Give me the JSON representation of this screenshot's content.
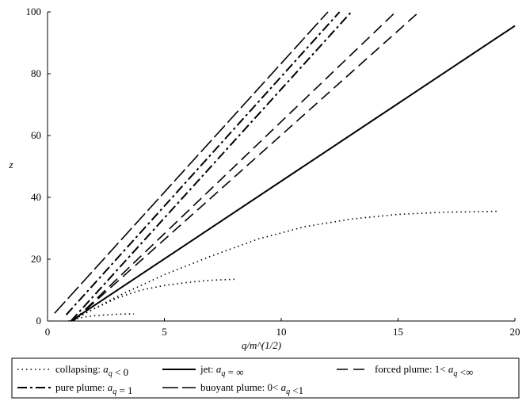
{
  "chart_data": {
    "type": "line",
    "x_label": "q/m^(1/2)",
    "y_label": "z",
    "xlim": [
      0,
      20
    ],
    "ylim": [
      0,
      100
    ],
    "xticks": [
      0,
      5,
      10,
      15,
      20
    ],
    "yticks": [
      0,
      20,
      40,
      60,
      80,
      100
    ],
    "series": [
      {
        "name": "collapsing: a_q < 0",
        "color": "#000000",
        "dash": "1.5 4",
        "width": 1.6,
        "lines": [
          {
            "x": [
              0.9,
              1.5,
              2,
              2.5,
              3,
              3.7
            ],
            "values": [
              0,
              1.2,
              1.7,
              2.0,
              2.2,
              2.3
            ]
          },
          {
            "x": [
              1,
              2,
              3,
              4,
              5,
              6,
              7,
              8
            ],
            "values": [
              0,
              4,
              7.5,
              10,
              11.5,
              12.5,
              13.2,
              13.5
            ]
          },
          {
            "x": [
              1,
              3,
              5,
              7,
              9,
              11,
              13,
              15,
              17,
              19.3
            ],
            "values": [
              0,
              8,
              15,
              21,
              26.5,
              30.5,
              33,
              34.5,
              35.2,
              35.5
            ]
          }
        ]
      },
      {
        "name": "jet: a_q = ∞",
        "color": "#000000",
        "dash": "",
        "width": 2,
        "lines": [
          {
            "x": [
              1,
              20
            ],
            "values": [
              0,
              95.5
            ]
          }
        ]
      },
      {
        "name": "forced plume: 1< a_q <∞",
        "color": "#000000",
        "dash": "14 7",
        "width": 1.6,
        "lines": [
          {
            "x": [
              1.1,
              14.9
            ],
            "values": [
              0,
              100
            ]
          },
          {
            "x": [
              1.1,
              15.9
            ],
            "values": [
              0,
              100
            ]
          }
        ]
      },
      {
        "name": "pure plume: a_q = 1",
        "color": "#000000",
        "dash": "12 4 3 4",
        "width": 2,
        "lines": [
          {
            "x": [
              1,
              13.0
            ],
            "values": [
              0,
              100
            ]
          },
          {
            "x": [
              0.8,
              12.5
            ],
            "values": [
              2,
              100
            ]
          }
        ]
      },
      {
        "name": "buoyant plume: 0< a_q <1",
        "color": "#000000",
        "dash": "20 5",
        "width": 1.6,
        "lines": [
          {
            "x": [
              0.3,
              12.0
            ],
            "values": [
              2.5,
              100
            ]
          }
        ]
      }
    ]
  }
}
